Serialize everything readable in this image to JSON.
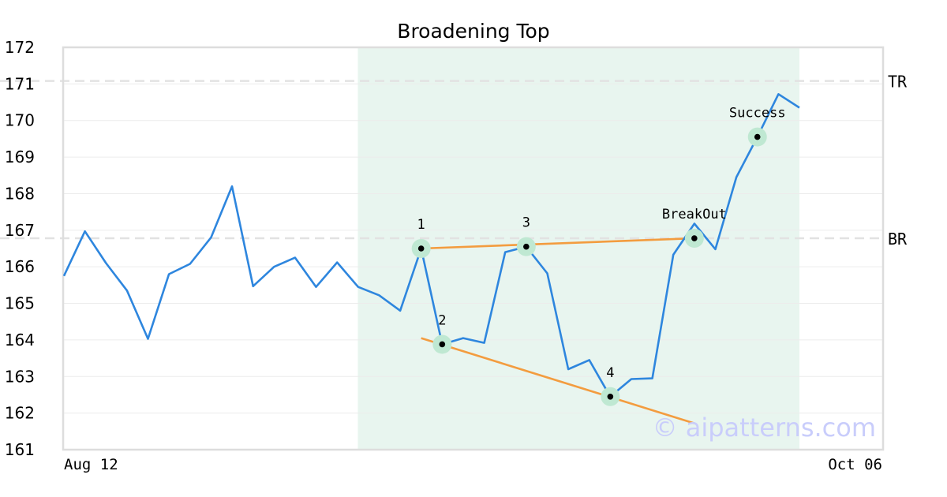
{
  "chart_data": {
    "type": "line",
    "title": "Broadening Top",
    "xlabel": "",
    "ylabel": "",
    "ylim": [
      161,
      172
    ],
    "yticks": [
      161,
      162,
      163,
      164,
      165,
      166,
      167,
      168,
      169,
      170,
      171,
      172
    ],
    "x_tick_labels": [
      {
        "index": 0,
        "label": "Aug 12"
      },
      {
        "index": 39,
        "label": "Oct 06"
      }
    ],
    "grid": true,
    "series": [
      {
        "color": "#2e86de",
        "values": [
          165.75,
          166.97,
          166.1,
          165.35,
          164.03,
          165.8,
          166.08,
          166.8,
          168.2,
          165.47,
          166.0,
          166.25,
          165.45,
          166.12,
          165.45,
          165.22,
          164.8,
          166.5,
          163.88,
          164.05,
          163.92,
          166.4,
          166.55,
          165.82,
          163.2,
          163.45,
          162.45,
          162.93,
          162.95,
          166.33,
          167.18,
          166.48,
          168.45,
          169.55,
          170.72,
          170.35
        ]
      }
    ],
    "highlight_range": {
      "from": 15,
      "to": 35,
      "color": "#e8f5ef"
    },
    "reference_lines": [
      {
        "label": "TR",
        "value": 171.08
      },
      {
        "label": "BR",
        "value": 166.78
      }
    ],
    "trendlines": [
      {
        "color": "#f39c3f",
        "from": {
          "x": 17,
          "y": 166.5
        },
        "to": {
          "x": 30,
          "y": 166.78
        }
      },
      {
        "color": "#f39c3f",
        "from": {
          "x": 17,
          "y": 164.05
        },
        "to": {
          "x": 30,
          "y": 161.72
        }
      }
    ],
    "markers": [
      {
        "label": "1",
        "x": 17,
        "y": 166.5
      },
      {
        "label": "2",
        "x": 18,
        "y": 163.88
      },
      {
        "label": "3",
        "x": 22,
        "y": 166.55
      },
      {
        "label": "4",
        "x": 26,
        "y": 162.45
      },
      {
        "label": "BreakOut",
        "x": 30,
        "y": 166.78
      },
      {
        "label": "Success",
        "x": 33,
        "y": 169.55
      }
    ],
    "watermark": "© aipatterns.com"
  }
}
